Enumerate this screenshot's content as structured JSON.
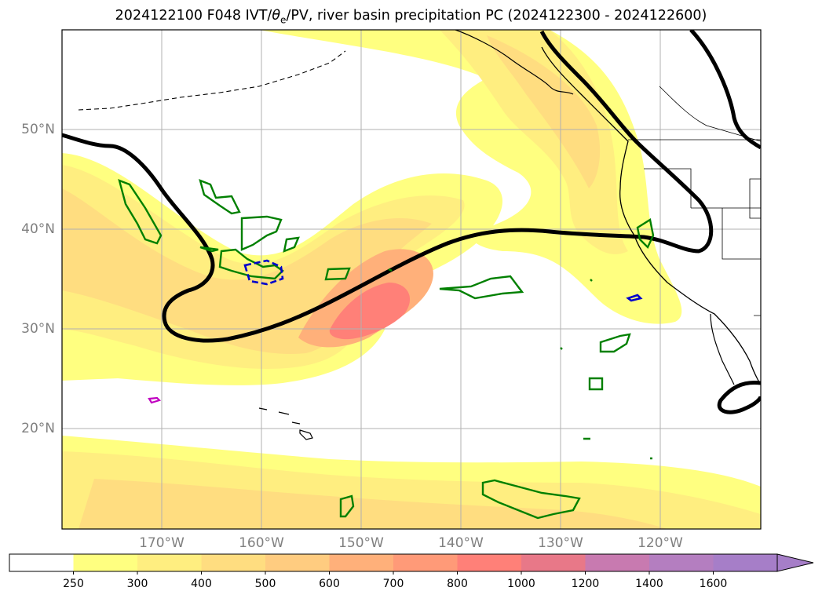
{
  "title": {
    "prefix": "2024122100 F048 IVT/",
    "theta_symbol": "θ",
    "theta_sub": "e",
    "suffix": "/PV, river basin precipitation PC (2024122300 - 2024122600)"
  },
  "map": {
    "projection": "Plate Carrée",
    "lon_range": [
      -180,
      -110
    ],
    "lat_range": [
      10,
      60
    ],
    "lat_labels": [
      "20°N",
      "30°N",
      "40°N",
      "50°N"
    ],
    "lon_labels": [
      "170°W",
      "160°W",
      "150°W",
      "140°W",
      "130°W",
      "120°W"
    ],
    "region": "North Pacific / North American West Coast",
    "layers": [
      "IVT shading",
      "PV contour (thick black)",
      "river basin precipitation contours (green, blue, magenta)",
      "coastlines"
    ]
  },
  "colorbar": {
    "labels": [
      "250",
      "300",
      "400",
      "500",
      "600",
      "700",
      "800",
      "1000",
      "1200",
      "1400",
      "1600"
    ],
    "colors": [
      "#ffffff",
      "#ffff80",
      "#ffee80",
      "#ffdd80",
      "#ffcc80",
      "#ffb07a",
      "#ff9a78",
      "#ff8078",
      "#e87888",
      "#c87ab0",
      "#b47ec0",
      "#a67ec8"
    ],
    "extend": "max"
  }
}
